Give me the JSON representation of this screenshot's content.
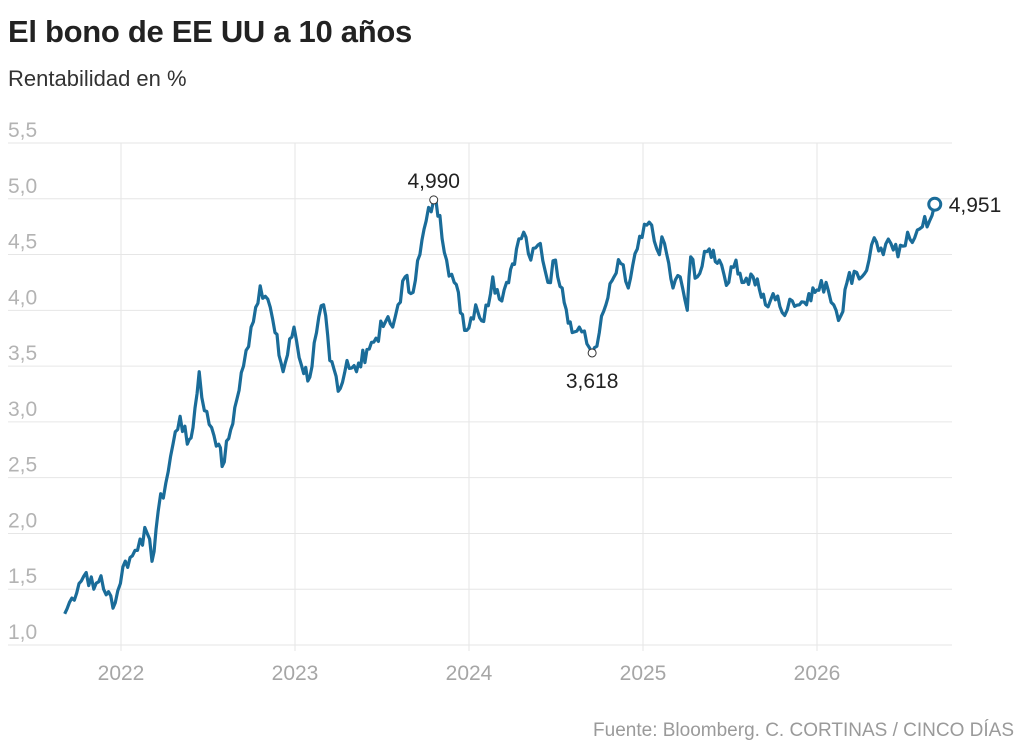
{
  "header": {
    "title": "El bono de EE UU a 10 años",
    "subtitle": "Rentabilidad en %"
  },
  "footer": {
    "source": "Fuente: Bloomberg. C. CORTINAS / CINCO DÍAS"
  },
  "colors": {
    "line": "#1a6c99",
    "grid": "#e6e6e6",
    "axis_text": "#b3b3b3"
  },
  "chart_data": {
    "type": "line",
    "title": "El bono de EE UU a 10 años",
    "ylabel": "Rentabilidad en %",
    "xlabel": "",
    "ylim": [
      1.0,
      5.5
    ],
    "yticks": [
      "1,0",
      "1,5",
      "2,0",
      "2,5",
      "3,0",
      "3,5",
      "4,0",
      "4,5",
      "5,0",
      "5,5"
    ],
    "xlim": [
      "2021-09-01",
      "2026-10-01"
    ],
    "xticks": [
      "2022",
      "2023",
      "2024",
      "2025",
      "2026"
    ],
    "grid": true,
    "annotations": [
      {
        "label": "4,990",
        "x": "2023-10-19",
        "y": 4.99,
        "kind": "max"
      },
      {
        "label": "3,618",
        "x": "2024-09-16",
        "y": 3.618,
        "kind": "min"
      },
      {
        "label": "4,951",
        "x": "2026-09-05",
        "y": 4.951,
        "kind": "last"
      }
    ],
    "series": [
      {
        "points": [
          [
            "2021-09-05",
            1.28
          ],
          [
            "2021-09-20",
            1.42
          ],
          [
            "2021-10-05",
            1.55
          ],
          [
            "2021-10-20",
            1.65
          ],
          [
            "2021-11-05",
            1.5
          ],
          [
            "2021-11-20",
            1.62
          ],
          [
            "2021-12-01",
            1.45
          ],
          [
            "2021-12-20",
            1.38
          ],
          [
            "2022-01-05",
            1.7
          ],
          [
            "2022-01-25",
            1.8
          ],
          [
            "2022-02-10",
            1.95
          ],
          [
            "2022-02-25",
            2.0
          ],
          [
            "2022-03-07",
            1.75
          ],
          [
            "2022-03-20",
            2.2
          ],
          [
            "2022-04-05",
            2.45
          ],
          [
            "2022-04-20",
            2.8
          ],
          [
            "2022-05-05",
            3.05
          ],
          [
            "2022-05-20",
            2.8
          ],
          [
            "2022-06-01",
            2.95
          ],
          [
            "2022-06-14",
            3.45
          ],
          [
            "2022-06-25",
            3.1
          ],
          [
            "2022-07-10",
            2.95
          ],
          [
            "2022-07-25",
            2.8
          ],
          [
            "2022-08-01",
            2.6
          ],
          [
            "2022-08-15",
            2.85
          ],
          [
            "2022-09-01",
            3.2
          ],
          [
            "2022-09-15",
            3.5
          ],
          [
            "2022-10-01",
            3.85
          ],
          [
            "2022-10-20",
            4.22
          ],
          [
            "2022-11-05",
            4.1
          ],
          [
            "2022-11-20",
            3.8
          ],
          [
            "2022-12-07",
            3.45
          ],
          [
            "2022-12-30",
            3.85
          ],
          [
            "2023-01-15",
            3.5
          ],
          [
            "2023-02-01",
            3.4
          ],
          [
            "2023-02-15",
            3.8
          ],
          [
            "2023-03-02",
            4.05
          ],
          [
            "2023-03-15",
            3.55
          ],
          [
            "2023-04-06",
            3.3
          ],
          [
            "2023-04-20",
            3.55
          ],
          [
            "2023-05-10",
            3.45
          ],
          [
            "2023-06-01",
            3.65
          ],
          [
            "2023-06-20",
            3.75
          ],
          [
            "2023-07-10",
            3.9
          ],
          [
            "2023-07-25",
            3.85
          ],
          [
            "2023-08-05",
            4.05
          ],
          [
            "2023-08-20",
            4.3
          ],
          [
            "2023-09-01",
            4.15
          ],
          [
            "2023-09-20",
            4.5
          ],
          [
            "2023-10-03",
            4.8
          ],
          [
            "2023-10-19",
            4.99
          ],
          [
            "2023-11-01",
            4.85
          ],
          [
            "2023-11-15",
            4.45
          ],
          [
            "2023-12-01",
            4.25
          ],
          [
            "2023-12-27",
            3.82
          ],
          [
            "2024-01-15",
            4.05
          ],
          [
            "2024-02-01",
            3.9
          ],
          [
            "2024-02-20",
            4.3
          ],
          [
            "2024-03-05",
            4.1
          ],
          [
            "2024-03-20",
            4.25
          ],
          [
            "2024-04-10",
            4.55
          ],
          [
            "2024-04-25",
            4.7
          ],
          [
            "2024-05-10",
            4.45
          ],
          [
            "2024-05-30",
            4.6
          ],
          [
            "2024-06-15",
            4.25
          ],
          [
            "2024-07-01",
            4.45
          ],
          [
            "2024-07-15",
            4.2
          ],
          [
            "2024-08-05",
            3.8
          ],
          [
            "2024-08-20",
            3.85
          ],
          [
            "2024-09-05",
            3.7
          ],
          [
            "2024-09-16",
            3.618
          ],
          [
            "2024-10-01",
            3.8
          ],
          [
            "2024-10-15",
            4.05
          ],
          [
            "2024-11-01",
            4.3
          ],
          [
            "2024-11-15",
            4.42
          ],
          [
            "2024-12-01",
            4.2
          ],
          [
            "2024-12-20",
            4.55
          ],
          [
            "2025-01-14",
            4.79
          ],
          [
            "2025-01-30",
            4.55
          ],
          [
            "2025-02-15",
            4.6
          ],
          [
            "2025-03-05",
            4.2
          ],
          [
            "2025-03-20",
            4.3
          ],
          [
            "2025-04-04",
            4.0
          ],
          [
            "2025-04-11",
            4.48
          ],
          [
            "2025-04-25",
            4.3
          ],
          [
            "2025-05-20",
            4.55
          ],
          [
            "2025-06-10",
            4.45
          ],
          [
            "2025-06-30",
            4.25
          ],
          [
            "2025-07-15",
            4.45
          ],
          [
            "2025-08-01",
            4.25
          ],
          [
            "2025-08-20",
            4.3
          ],
          [
            "2025-09-15",
            4.05
          ],
          [
            "2025-10-01",
            4.15
          ],
          [
            "2025-10-20",
            3.98
          ],
          [
            "2025-11-05",
            4.1
          ],
          [
            "2025-11-25",
            4.05
          ],
          [
            "2025-12-15",
            4.15
          ],
          [
            "2026-01-05",
            4.18
          ],
          [
            "2026-01-20",
            4.25
          ],
          [
            "2026-02-05",
            4.05
          ],
          [
            "2026-02-20",
            3.95
          ],
          [
            "2026-03-05",
            4.25
          ],
          [
            "2026-03-20",
            4.35
          ],
          [
            "2026-04-05",
            4.3
          ],
          [
            "2026-04-20",
            4.45
          ],
          [
            "2026-05-01",
            4.65
          ],
          [
            "2026-05-20",
            4.5
          ],
          [
            "2026-06-05",
            4.6
          ],
          [
            "2026-06-20",
            4.48
          ],
          [
            "2026-07-10",
            4.7
          ],
          [
            "2026-07-25",
            4.65
          ],
          [
            "2026-08-10",
            4.75
          ],
          [
            "2026-08-25",
            4.8
          ],
          [
            "2026-09-05",
            4.951
          ]
        ]
      }
    ]
  }
}
